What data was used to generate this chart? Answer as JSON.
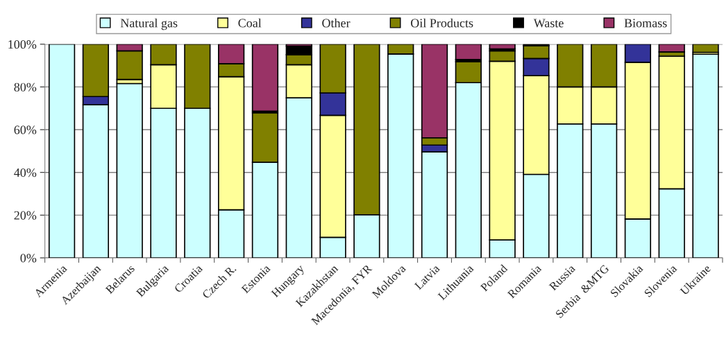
{
  "chart_data": {
    "type": "bar",
    "stacked": true,
    "categories": [
      "Armenia",
      "Azerbaijan",
      "Belarus",
      "Bulgaria",
      "Croatia",
      "Czech R.",
      "Estonia",
      "Hungary",
      "Kazakhstan",
      "Macedonia, FYR",
      "Moldova",
      "Latvia",
      "Lithuania",
      "Poland",
      "Romania",
      "Russia",
      "Serbia  &MTG",
      "Slovakia",
      "Slovenia",
      "Ukraine"
    ],
    "series": [
      {
        "name": "Natural gas",
        "color": "#ccffff",
        "values": [
          100,
          71.7,
          81.6,
          70,
          70,
          22.5,
          44.7,
          74.9,
          9.6,
          20.2,
          95.4,
          49.6,
          82.0,
          8.4,
          39.1,
          62.7,
          62.7,
          18.2,
          32.3,
          95.3
        ]
      },
      {
        "name": "Coal",
        "color": "#ffff99",
        "values": [
          0,
          0,
          1.9,
          20.4,
          0,
          62.3,
          0,
          15.5,
          57.1,
          0,
          0,
          0,
          0,
          83.6,
          46.2,
          17.3,
          17.3,
          73.3,
          62.1,
          0.9
        ]
      },
      {
        "name": "Other",
        "color": "#333399",
        "values": [
          0,
          3.8,
          0,
          0,
          0,
          0,
          0,
          0,
          10.5,
          0,
          0,
          3.2,
          0,
          0,
          8.0,
          0,
          0,
          8.5,
          0,
          0
        ]
      },
      {
        "name": "Oil Products",
        "color": "#808000",
        "values": [
          0,
          24.5,
          13.4,
          9.6,
          30,
          6.1,
          23.2,
          4.7,
          22.8,
          79.8,
          4.6,
          3.4,
          9.8,
          4.9,
          6.0,
          20,
          20,
          0,
          2.0,
          3.8
        ]
      },
      {
        "name": "Waste",
        "color": "#000000",
        "values": [
          0,
          0,
          0,
          0,
          0,
          0,
          0.8,
          4.0,
          0,
          0,
          0,
          0,
          1.0,
          0.9,
          0.7,
          0,
          0,
          0,
          0,
          0
        ]
      },
      {
        "name": "Biomass",
        "color": "#993366",
        "values": [
          0,
          0,
          3.1,
          0,
          0,
          9.1,
          31.3,
          0.9,
          0,
          0,
          0,
          43.8,
          7.2,
          2.2,
          0,
          0,
          0,
          0,
          3.6,
          0
        ]
      }
    ],
    "ylim": [
      0,
      100
    ],
    "yticks": [
      {
        "value": 0,
        "label": "0%"
      },
      {
        "value": 20,
        "label": "20%"
      },
      {
        "value": 40,
        "label": "40%"
      },
      {
        "value": 60,
        "label": "60%"
      },
      {
        "value": 80,
        "label": "80%"
      },
      {
        "value": 100,
        "label": "100%"
      }
    ],
    "grid": "y",
    "legend": "top"
  }
}
